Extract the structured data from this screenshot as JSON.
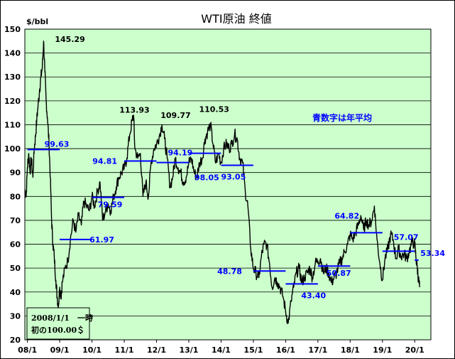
{
  "chart_data": {
    "type": "line",
    "title": "WTI原油 終値",
    "ylabel": "$/bbl",
    "xlabel": "",
    "ylim": [
      20,
      150
    ],
    "yticks": [
      20,
      30,
      40,
      50,
      60,
      70,
      80,
      90,
      100,
      110,
      120,
      130,
      140,
      150
    ],
    "xlim": [
      2008.0,
      2020.5
    ],
    "xticks": [
      {
        "label": "08/1",
        "x": 2008.0
      },
      {
        "label": "09/1",
        "x": 2009.0
      },
      {
        "label": "10/1",
        "x": 2010.0
      },
      {
        "label": "11/1",
        "x": 2011.0
      },
      {
        "label": "12/1",
        "x": 2012.0
      },
      {
        "label": "13/1",
        "x": 2013.0
      },
      {
        "label": "14/1",
        "x": 2014.0
      },
      {
        "label": "15/1",
        "x": 2015.0
      },
      {
        "label": "16/1",
        "x": 2016.0
      },
      {
        "label": "17/1",
        "x": 2017.0
      },
      {
        "label": "18/1",
        "x": 2018.0
      },
      {
        "label": "19/1",
        "x": 2019.0
      },
      {
        "label": "20/1",
        "x": 2020.0
      }
    ],
    "grid": "horizontal",
    "background": "#ccffcc",
    "line_color": "#000000",
    "average_color": "#0000ff",
    "series": [
      {
        "values": [
          [
            2007.92,
            83
          ],
          [
            2007.96,
            80
          ],
          [
            2008.0,
            92
          ],
          [
            2008.04,
            98
          ],
          [
            2008.08,
            90
          ],
          [
            2008.12,
            96
          ],
          [
            2008.17,
            88
          ],
          [
            2008.21,
            100
          ],
          [
            2008.25,
            105
          ],
          [
            2008.29,
            112
          ],
          [
            2008.33,
            118
          ],
          [
            2008.38,
            125
          ],
          [
            2008.42,
            130
          ],
          [
            2008.46,
            134
          ],
          [
            2008.5,
            145
          ],
          [
            2008.54,
            132
          ],
          [
            2008.58,
            120
          ],
          [
            2008.62,
            113
          ],
          [
            2008.67,
            102
          ],
          [
            2008.71,
            88
          ],
          [
            2008.75,
            70
          ],
          [
            2008.79,
            60
          ],
          [
            2008.83,
            55
          ],
          [
            2008.88,
            45
          ],
          [
            2008.92,
            38
          ],
          [
            2008.96,
            34
          ],
          [
            2009.0,
            42
          ],
          [
            2009.04,
            38
          ],
          [
            2009.08,
            44
          ],
          [
            2009.17,
            50
          ],
          [
            2009.25,
            53
          ],
          [
            2009.33,
            62
          ],
          [
            2009.42,
            70
          ],
          [
            2009.5,
            65
          ],
          [
            2009.58,
            72
          ],
          [
            2009.67,
            68
          ],
          [
            2009.75,
            78
          ],
          [
            2009.83,
            76
          ],
          [
            2009.92,
            74
          ],
          [
            2010.0,
            80
          ],
          [
            2010.08,
            76
          ],
          [
            2010.17,
            82
          ],
          [
            2010.25,
            86
          ],
          [
            2010.33,
            70
          ],
          [
            2010.42,
            74
          ],
          [
            2010.5,
            77
          ],
          [
            2010.58,
            74
          ],
          [
            2010.67,
            80
          ],
          [
            2010.75,
            84
          ],
          [
            2010.83,
            88
          ],
          [
            2010.92,
            90
          ],
          [
            2011.0,
            92
          ],
          [
            2011.08,
            96
          ],
          [
            2011.17,
            106
          ],
          [
            2011.25,
            112
          ],
          [
            2011.29,
            114
          ],
          [
            2011.33,
            100
          ],
          [
            2011.42,
            96
          ],
          [
            2011.5,
            98
          ],
          [
            2011.58,
            80
          ],
          [
            2011.67,
            86
          ],
          [
            2011.75,
            80
          ],
          [
            2011.83,
            94
          ],
          [
            2011.92,
            100
          ],
          [
            2012.0,
            102
          ],
          [
            2012.08,
            105
          ],
          [
            2012.17,
            110
          ],
          [
            2012.25,
            104
          ],
          [
            2012.33,
            96
          ],
          [
            2012.42,
            84
          ],
          [
            2012.5,
            88
          ],
          [
            2012.58,
            96
          ],
          [
            2012.67,
            92
          ],
          [
            2012.75,
            90
          ],
          [
            2012.83,
            86
          ],
          [
            2012.92,
            88
          ],
          [
            2013.0,
            94
          ],
          [
            2013.08,
            96
          ],
          [
            2013.17,
            90
          ],
          [
            2013.25,
            88
          ],
          [
            2013.33,
            94
          ],
          [
            2013.42,
            96
          ],
          [
            2013.5,
            104
          ],
          [
            2013.58,
            107
          ],
          [
            2013.67,
            110
          ],
          [
            2013.75,
            102
          ],
          [
            2013.83,
            94
          ],
          [
            2013.92,
            98
          ],
          [
            2014.0,
            94
          ],
          [
            2014.08,
            100
          ],
          [
            2014.17,
            102
          ],
          [
            2014.25,
            100
          ],
          [
            2014.33,
            102
          ],
          [
            2014.42,
            106
          ],
          [
            2014.5,
            104
          ],
          [
            2014.58,
            96
          ],
          [
            2014.67,
            94
          ],
          [
            2014.75,
            82
          ],
          [
            2014.83,
            76
          ],
          [
            2014.92,
            58
          ],
          [
            2015.0,
            50
          ],
          [
            2015.08,
            48
          ],
          [
            2015.17,
            46
          ],
          [
            2015.25,
            55
          ],
          [
            2015.33,
            60
          ],
          [
            2015.42,
            60
          ],
          [
            2015.5,
            52
          ],
          [
            2015.58,
            42
          ],
          [
            2015.67,
            46
          ],
          [
            2015.75,
            44
          ],
          [
            2015.83,
            42
          ],
          [
            2015.92,
            38
          ],
          [
            2016.0,
            32
          ],
          [
            2016.08,
            27
          ],
          [
            2016.17,
            36
          ],
          [
            2016.25,
            42
          ],
          [
            2016.33,
            48
          ],
          [
            2016.42,
            50
          ],
          [
            2016.5,
            44
          ],
          [
            2016.58,
            46
          ],
          [
            2016.67,
            48
          ],
          [
            2016.75,
            50
          ],
          [
            2016.83,
            46
          ],
          [
            2016.92,
            52
          ],
          [
            2017.0,
            53
          ],
          [
            2017.08,
            54
          ],
          [
            2017.17,
            48
          ],
          [
            2017.25,
            50
          ],
          [
            2017.33,
            48
          ],
          [
            2017.42,
            44
          ],
          [
            2017.5,
            46
          ],
          [
            2017.58,
            48
          ],
          [
            2017.67,
            52
          ],
          [
            2017.75,
            54
          ],
          [
            2017.83,
            57
          ],
          [
            2017.92,
            60
          ],
          [
            2018.0,
            64
          ],
          [
            2018.08,
            62
          ],
          [
            2018.17,
            65
          ],
          [
            2018.25,
            68
          ],
          [
            2018.33,
            72
          ],
          [
            2018.42,
            66
          ],
          [
            2018.5,
            70
          ],
          [
            2018.58,
            68
          ],
          [
            2018.67,
            70
          ],
          [
            2018.75,
            76
          ],
          [
            2018.83,
            62
          ],
          [
            2018.92,
            52
          ],
          [
            2019.0,
            45
          ],
          [
            2019.08,
            54
          ],
          [
            2019.17,
            58
          ],
          [
            2019.25,
            64
          ],
          [
            2019.33,
            62
          ],
          [
            2019.42,
            54
          ],
          [
            2019.5,
            58
          ],
          [
            2019.58,
            55
          ],
          [
            2019.67,
            56
          ],
          [
            2019.75,
            54
          ],
          [
            2019.83,
            57
          ],
          [
            2019.92,
            61
          ],
          [
            2020.0,
            60
          ],
          [
            2020.04,
            54
          ],
          [
            2020.08,
            50
          ],
          [
            2020.12,
            45
          ],
          [
            2020.15,
            42
          ]
        ]
      }
    ],
    "averages": [
      {
        "x0": 2008.0,
        "x1": 2009.0,
        "value": 99.63,
        "label": "99.63"
      },
      {
        "x0": 2009.0,
        "x1": 2010.0,
        "value": 61.97,
        "label": "61.97"
      },
      {
        "x0": 2010.0,
        "x1": 2011.0,
        "value": 79.59,
        "label": "79.59"
      },
      {
        "x0": 2011.0,
        "x1": 2012.0,
        "value": 94.81,
        "label": "94.81"
      },
      {
        "x0": 2012.0,
        "x1": 2013.0,
        "value": 94.19,
        "label": "94.19"
      },
      {
        "x0": 2013.0,
        "x1": 2014.0,
        "value": 98.05,
        "label": "98.05"
      },
      {
        "x0": 2014.0,
        "x1": 2015.0,
        "value": 93.05,
        "label": "93.05"
      },
      {
        "x0": 2015.0,
        "x1": 2016.0,
        "value": 48.78,
        "label": "48.78"
      },
      {
        "x0": 2016.0,
        "x1": 2017.0,
        "value": 43.4,
        "label": "43.40"
      },
      {
        "x0": 2017.0,
        "x1": 2018.0,
        "value": 50.87,
        "label": "50.87"
      },
      {
        "x0": 2018.0,
        "x1": 2019.0,
        "value": 64.82,
        "label": "64.82"
      },
      {
        "x0": 2019.0,
        "x1": 2020.0,
        "value": 57.07,
        "label": "57.07"
      },
      {
        "x0": 2020.0,
        "x1": 2020.12,
        "value": 53.34,
        "label": "53.34"
      }
    ],
    "annotations": [
      {
        "text": "145.29",
        "x": 2008.5,
        "y": 145.29
      },
      {
        "text": "113.93",
        "x": 2011.29,
        "y": 113.93
      },
      {
        "text": "109.77",
        "x": 2012.17,
        "y": 109.77
      },
      {
        "text": "110.53",
        "x": 2013.67,
        "y": 110.53
      }
    ],
    "note": "青数字は年平均",
    "legend_box_lines": [
      "2008/1/1　一時",
      "初の100.00＄"
    ]
  }
}
